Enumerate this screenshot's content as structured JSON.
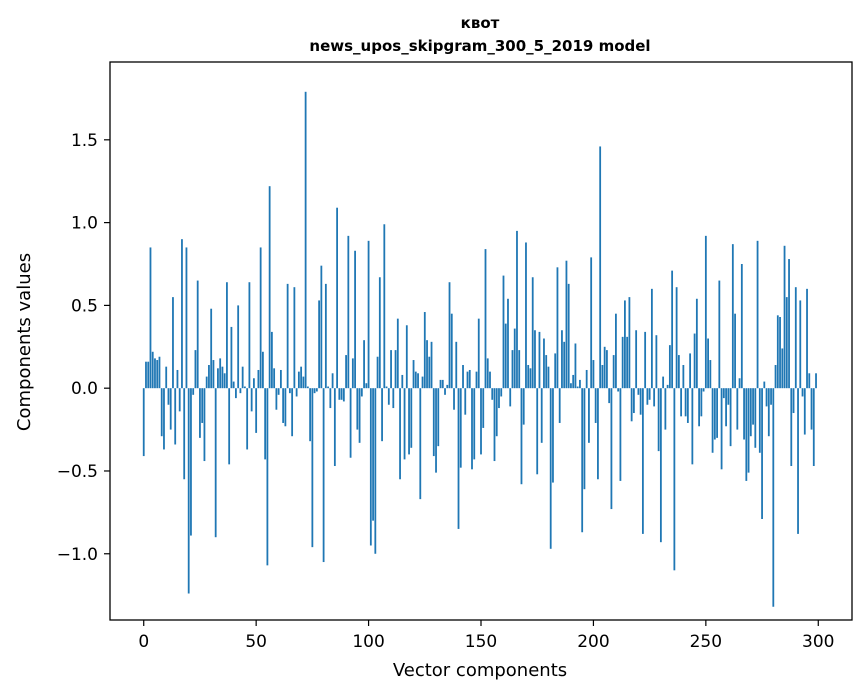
{
  "chart_data": {
    "type": "bar",
    "title": "квот",
    "subtitle": "news_upos_skipgram_300_5_2019 model",
    "xlabel": "Vector components",
    "ylabel": "Components values",
    "xlim": [
      -15,
      315
    ],
    "ylim": [
      -1.4,
      1.97
    ],
    "xticks": [
      0,
      50,
      100,
      150,
      200,
      250,
      300
    ],
    "yticks": [
      -1.0,
      -0.5,
      0.0,
      0.5,
      1.0,
      1.5
    ],
    "ytick_labels": [
      "−1.0",
      "−0.5",
      "0.0",
      "0.5",
      "1.0",
      "1.5"
    ],
    "bar_color": "#1f77b4",
    "grid": false,
    "x": [
      0,
      1,
      2,
      3,
      4,
      5,
      6,
      7,
      8,
      9,
      10,
      11,
      12,
      13,
      14,
      15,
      16,
      17,
      18,
      19,
      20,
      21,
      22,
      23,
      24,
      25,
      26,
      27,
      28,
      29,
      30,
      31,
      32,
      33,
      34,
      35,
      36,
      37,
      38,
      39,
      40,
      41,
      42,
      43,
      44,
      45,
      46,
      47,
      48,
      49,
      50,
      51,
      52,
      53,
      54,
      55,
      56,
      57,
      58,
      59,
      60,
      61,
      62,
      63,
      64,
      65,
      66,
      67,
      68,
      69,
      70,
      71,
      72,
      73,
      74,
      75,
      76,
      77,
      78,
      79,
      80,
      81,
      82,
      83,
      84,
      85,
      86,
      87,
      88,
      89,
      90,
      91,
      92,
      93,
      94,
      95,
      96,
      97,
      98,
      99,
      100,
      101,
      102,
      103,
      104,
      105,
      106,
      107,
      108,
      109,
      110,
      111,
      112,
      113,
      114,
      115,
      116,
      117,
      118,
      119,
      120,
      121,
      122,
      123,
      124,
      125,
      126,
      127,
      128,
      129,
      130,
      131,
      132,
      133,
      134,
      135,
      136,
      137,
      138,
      139,
      140,
      141,
      142,
      143,
      144,
      145,
      146,
      147,
      148,
      149,
      150,
      151,
      152,
      153,
      154,
      155,
      156,
      157,
      158,
      159,
      160,
      161,
      162,
      163,
      164,
      165,
      166,
      167,
      168,
      169,
      170,
      171,
      172,
      173,
      174,
      175,
      176,
      177,
      178,
      179,
      180,
      181,
      182,
      183,
      184,
      185,
      186,
      187,
      188,
      189,
      190,
      191,
      192,
      193,
      194,
      195,
      196,
      197,
      198,
      199,
      200,
      201,
      202,
      203,
      204,
      205,
      206,
      207,
      208,
      209,
      210,
      211,
      212,
      213,
      214,
      215,
      216,
      217,
      218,
      219,
      220,
      221,
      222,
      223,
      224,
      225,
      226,
      227,
      228,
      229,
      230,
      231,
      232,
      233,
      234,
      235,
      236,
      237,
      238,
      239,
      240,
      241,
      242,
      243,
      244,
      245,
      246,
      247,
      248,
      249,
      250,
      251,
      252,
      253,
      254,
      255,
      256,
      257,
      258,
      259,
      260,
      261,
      262,
      263,
      264,
      265,
      266,
      267,
      268,
      269,
      270,
      271,
      272,
      273,
      274,
      275,
      276,
      277,
      278,
      279,
      280,
      281,
      282,
      283,
      284,
      285,
      286,
      287,
      288,
      289,
      290,
      291,
      292,
      293,
      294,
      295,
      296,
      297,
      298,
      299
    ],
    "values": [
      -0.41,
      0.16,
      0.16,
      0.85,
      0.22,
      0.18,
      0.17,
      0.19,
      -0.29,
      -0.37,
      0.13,
      -0.1,
      -0.25,
      0.55,
      -0.34,
      0.11,
      -0.14,
      0.9,
      -0.55,
      0.85,
      -1.24,
      -0.89,
      -0.04,
      0.23,
      0.65,
      -0.3,
      -0.21,
      -0.44,
      0.07,
      0.14,
      0.48,
      0.17,
      -0.9,
      0.12,
      0.18,
      0.13,
      0.09,
      0.64,
      -0.46,
      0.37,
      0.04,
      -0.06,
      0.5,
      -0.03,
      0.13,
      0.01,
      -0.37,
      0.64,
      -0.14,
      0.06,
      -0.27,
      0.11,
      0.85,
      0.22,
      -0.43,
      -1.07,
      1.22,
      0.34,
      0.12,
      -0.13,
      -0.04,
      0.11,
      -0.21,
      -0.23,
      0.63,
      -0.03,
      -0.29,
      0.61,
      -0.05,
      0.1,
      0.13,
      0.07,
      1.79,
      0.01,
      -0.32,
      -0.96,
      -0.03,
      -0.02,
      0.53,
      0.74,
      -1.05,
      0.63,
      0.01,
      -0.12,
      0.09,
      -0.47,
      1.09,
      -0.07,
      -0.07,
      -0.08,
      0.2,
      0.92,
      -0.42,
      0.18,
      0.83,
      -0.25,
      -0.33,
      -0.05,
      0.29,
      0.03,
      0.89,
      -0.95,
      -0.8,
      -1.0,
      0.19,
      0.67,
      -0.32,
      0.99,
      0.01,
      -0.1,
      0.23,
      -0.12,
      0.23,
      0.42,
      -0.55,
      0.08,
      -0.43,
      0.38,
      -0.4,
      -0.36,
      0.17,
      0.1,
      0.09,
      -0.67,
      0.07,
      0.46,
      0.29,
      0.19,
      0.28,
      -0.41,
      -0.51,
      -0.35,
      0.05,
      0.05,
      -0.04,
      0.02,
      0.64,
      0.45,
      -0.13,
      0.28,
      -0.85,
      -0.48,
      0.14,
      -0.16,
      0.1,
      0.11,
      -0.49,
      -0.43,
      0.1,
      0.42,
      -0.4,
      -0.24,
      0.84,
      0.18,
      0.1,
      -0.07,
      -0.44,
      -0.29,
      -0.12,
      -0.05,
      0.68,
      0.39,
      0.54,
      -0.11,
      0.23,
      0.36,
      0.95,
      0.23,
      -0.58,
      -0.22,
      0.88,
      0.14,
      0.12,
      0.67,
      0.35,
      -0.52,
      0.34,
      -0.33,
      0.3,
      0.2,
      0.13,
      -0.97,
      -0.57,
      0.21,
      0.73,
      -0.21,
      0.35,
      0.28,
      0.77,
      0.63,
      0.03,
      0.08,
      0.27,
      0.01,
      0.05,
      -0.87,
      -0.61,
      0.11,
      -0.33,
      0.79,
      0.17,
      -0.21,
      -0.55,
      1.46,
      0.14,
      0.25,
      0.23,
      -0.09,
      -0.73,
      0.2,
      0.45,
      -0.02,
      -0.56,
      0.31,
      0.53,
      0.31,
      0.55,
      -0.2,
      -0.15,
      0.35,
      -0.04,
      -0.16,
      -0.88,
      0.34,
      -0.1,
      -0.07,
      0.6,
      -0.11,
      0.32,
      -0.38,
      -0.93,
      0.07,
      -0.25,
      0.02,
      0.26,
      0.71,
      -1.1,
      0.61,
      0.2,
      -0.17,
      0.14,
      -0.17,
      -0.21,
      0.21,
      -0.46,
      0.33,
      0.54,
      -0.23,
      -0.17,
      -0.02,
      0.92,
      0.3,
      0.17,
      -0.39,
      -0.31,
      -0.3,
      0.65,
      -0.49,
      -0.06,
      -0.23,
      -0.1,
      -0.35,
      0.87,
      0.45,
      -0.25,
      0.06,
      0.75,
      -0.31,
      -0.56,
      -0.51,
      -0.29,
      -0.22,
      -0.36,
      0.89,
      -0.39,
      -0.79,
      0.04,
      -0.11,
      -0.29,
      -0.1,
      -1.32,
      0.14,
      0.44,
      0.43,
      0.24,
      0.86,
      0.55,
      0.78,
      -0.47,
      -0.15,
      0.61,
      -0.88,
      0.53,
      -0.05,
      -0.28,
      0.6,
      0.09,
      -0.25,
      -0.47,
      0.09
    ]
  }
}
